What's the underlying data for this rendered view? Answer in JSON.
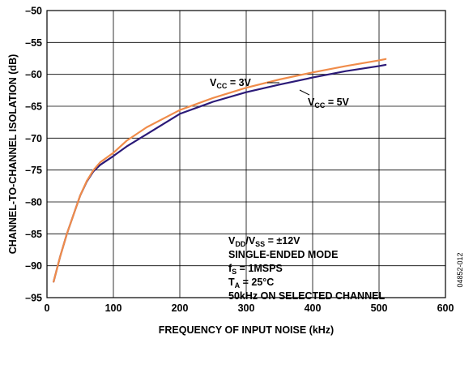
{
  "chart_data": {
    "type": "line",
    "title": "",
    "xlabel": "FREQUENCY OF INPUT NOISE (kHz)",
    "ylabel": "CHANNEL-TO-CHANNEL ISOLATION (dB)",
    "xlim": [
      0,
      600
    ],
    "ylim": [
      -95,
      -50
    ],
    "x_ticks": [
      0,
      100,
      200,
      300,
      400,
      500,
      600
    ],
    "y_ticks": [
      -95,
      -90,
      -85,
      -80,
      -75,
      -70,
      -65,
      -60,
      -55,
      -50
    ],
    "grid": true,
    "series": [
      {
        "name": "VCC = 5V",
        "label_main": "V",
        "label_sub": "CC",
        "label_rest": " = 5V",
        "color": "#2b1a78",
        "x": [
          10,
          20,
          30,
          40,
          50,
          60,
          70,
          80,
          100,
          120,
          150,
          200,
          250,
          300,
          350,
          400,
          450,
          500,
          510
        ],
        "y": [
          -92.5,
          -88.5,
          -85.0,
          -82.0,
          -79.0,
          -76.8,
          -75.2,
          -74.2,
          -72.8,
          -71.3,
          -69.4,
          -66.2,
          -64.3,
          -62.8,
          -61.6,
          -60.5,
          -59.5,
          -58.7,
          -58.5
        ]
      },
      {
        "name": "VCC = 3V",
        "label_main": "V",
        "label_sub": "CC",
        "label_rest": " = 3V",
        "color": "#f08c4a",
        "x": [
          10,
          20,
          30,
          40,
          50,
          60,
          70,
          80,
          100,
          120,
          150,
          200,
          250,
          300,
          350,
          400,
          450,
          500,
          510
        ],
        "y": [
          -92.5,
          -88.5,
          -85.0,
          -82.0,
          -79.0,
          -76.7,
          -75.0,
          -73.8,
          -72.3,
          -70.4,
          -68.3,
          -65.6,
          -63.7,
          -62.1,
          -60.8,
          -59.7,
          -58.7,
          -57.8,
          -57.6
        ]
      }
    ],
    "conditions": [
      {
        "main": "V",
        "sub": "DD",
        "mid": "/V",
        "sub2": "SS",
        "rest": " = ±12V"
      },
      {
        "main": "SINGLE-ENDED MODE",
        "sub": "",
        "mid": "",
        "sub2": "",
        "rest": ""
      },
      {
        "main": "f",
        "sub": "S",
        "mid": " = 1MSPS",
        "sub2": "",
        "rest": ""
      },
      {
        "main": "T",
        "sub": "A",
        "mid": " = 25°C",
        "sub2": "",
        "rest": ""
      },
      {
        "main": "50kHz ON SELECTED CHANNEL",
        "sub": "",
        "mid": "",
        "sub2": "",
        "rest": ""
      }
    ],
    "figure_id": "04852-012"
  }
}
